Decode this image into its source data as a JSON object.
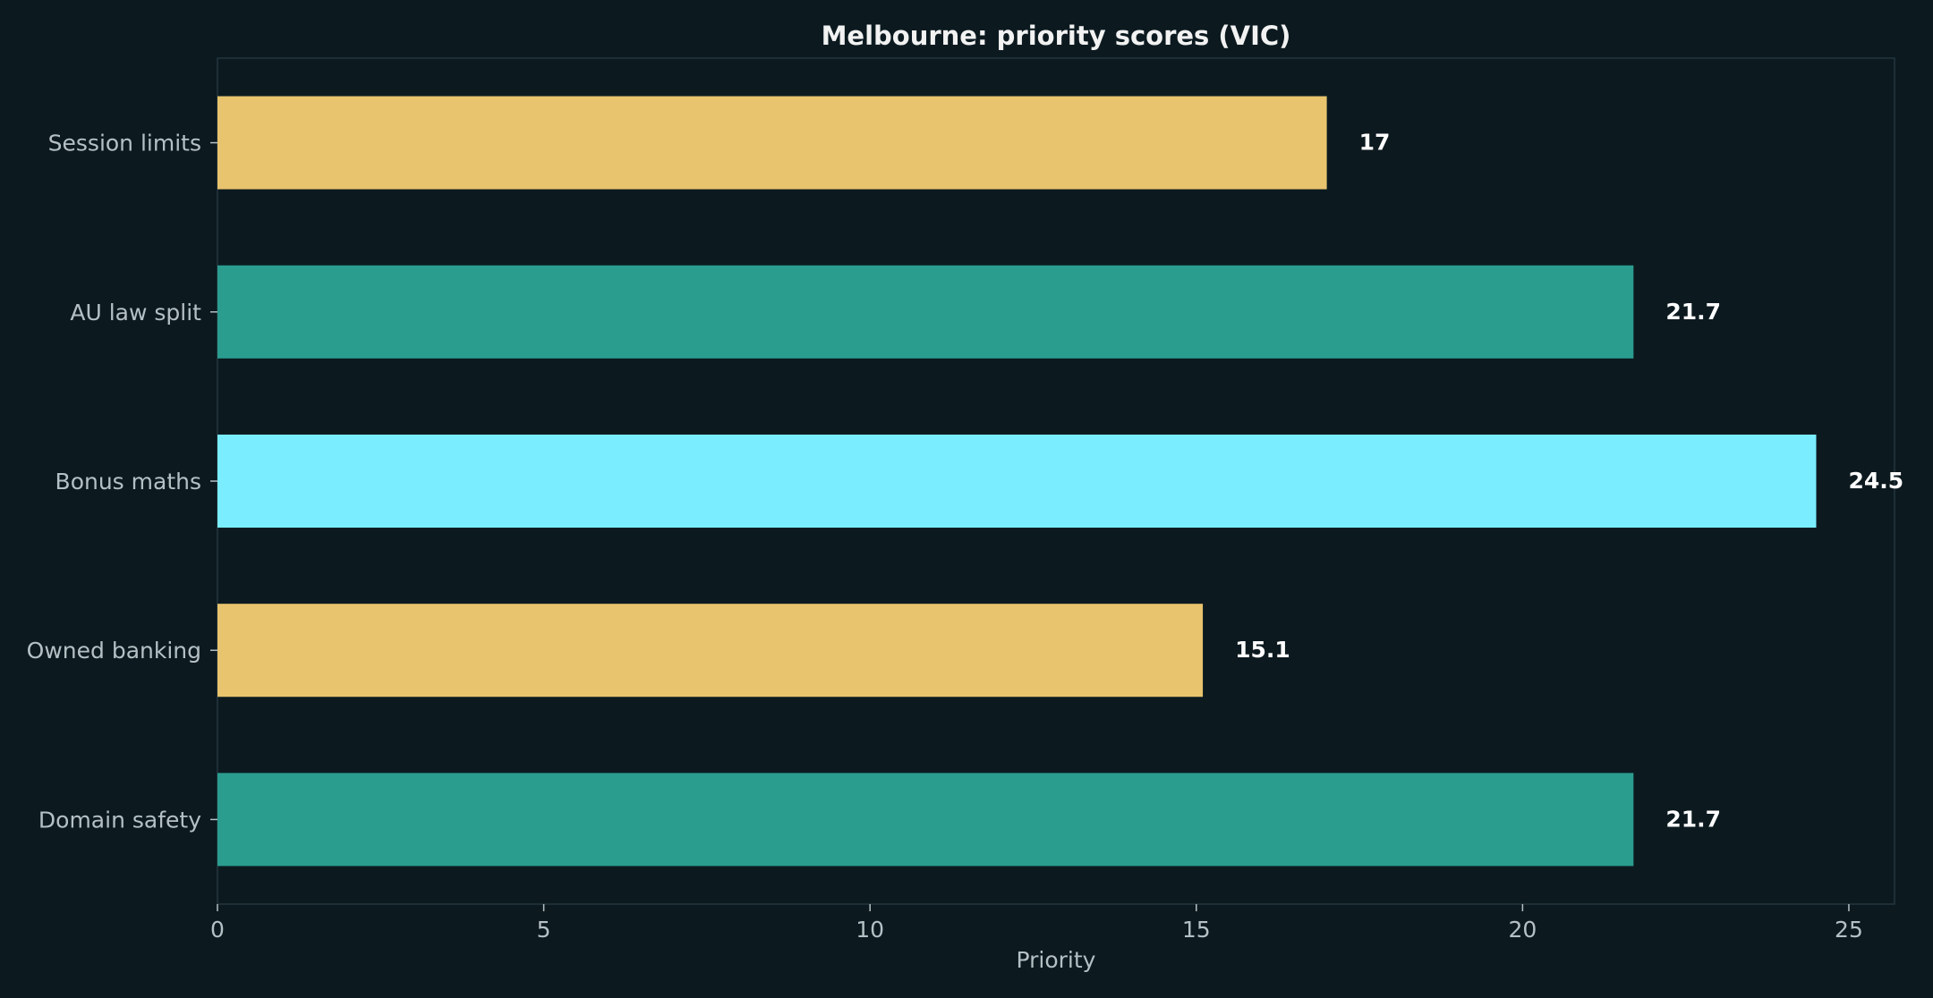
{
  "chart_data": {
    "type": "bar",
    "orientation": "horizontal",
    "title": "Melbourne: priority scores (VIC)",
    "xlabel": "Priority",
    "ylabel": "",
    "categories": [
      "Session limits",
      "AU law split",
      "Bonus maths",
      "Owned banking",
      "Domain safety"
    ],
    "values": [
      17,
      21.7,
      24.5,
      15.1,
      21.7
    ],
    "value_labels": [
      "17",
      "21.7",
      "24.5",
      "15.1",
      "21.7"
    ],
    "bar_colors": [
      "#e8c46e",
      "#2a9d8f",
      "#7aeeff",
      "#e8c46e",
      "#2a9d8f"
    ],
    "xlim": [
      0,
      25.7
    ],
    "xticks": [
      0,
      5,
      10,
      15,
      20,
      25
    ],
    "grid": false,
    "legend": "none"
  },
  "colors": {
    "background": "#0c1a20",
    "axes_edge": "#25353d",
    "text": "#b4c0c4",
    "title": "#f2f2f2"
  }
}
